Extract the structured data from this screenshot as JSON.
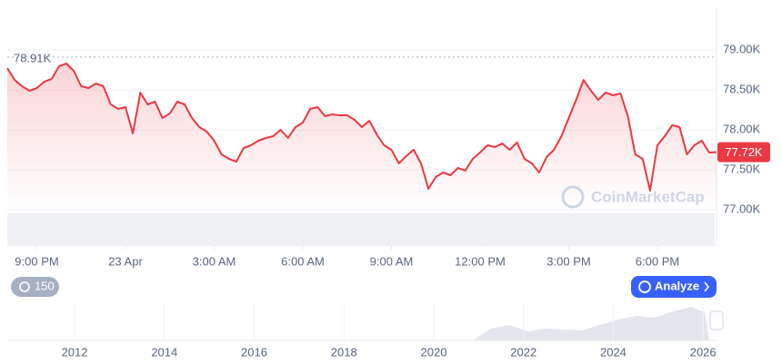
{
  "chart_data": {
    "type": "line",
    "color": "#ea3943",
    "values": [
      78773,
      78625,
      78545,
      78489,
      78523,
      78602,
      78636,
      78795,
      78830,
      78739,
      78545,
      78523,
      78580,
      78545,
      78318,
      78261,
      78284,
      77955,
      78466,
      78318,
      78352,
      78148,
      78205,
      78352,
      78318,
      78148,
      78034,
      77977,
      77864,
      77693,
      77636,
      77602,
      77773,
      77807,
      77864,
      77898,
      77920,
      78000,
      77898,
      78034,
      78091,
      78261,
      78284,
      78170,
      78193,
      78182,
      78182,
      78125,
      78034,
      78114,
      77943,
      77807,
      77750,
      77580,
      77670,
      77750,
      77580,
      77261,
      77409,
      77466,
      77432,
      77523,
      77489,
      77636,
      77716,
      77807,
      77784,
      77830,
      77750,
      77841,
      77636,
      77580,
      77466,
      77659,
      77750,
      77920,
      78148,
      78375,
      78625,
      78489,
      78375,
      78466,
      78432,
      78455,
      78170,
      77693,
      77636,
      77239,
      77807,
      77920,
      78057,
      78034,
      77693,
      77807,
      77864,
      77716,
      77720
    ],
    "xlim": [
      0,
      96
    ],
    "xticks": [
      {
        "value": 4,
        "label": "9:00 PM"
      },
      {
        "value": 16,
        "label": "23 Apr"
      },
      {
        "value": 28,
        "label": "3:00 AM"
      },
      {
        "value": 40,
        "label": "6:00 AM"
      },
      {
        "value": 52,
        "label": "9:00 AM"
      },
      {
        "value": 64,
        "label": "12:00 PM"
      },
      {
        "value": 76,
        "label": "3:00 PM"
      },
      {
        "value": 88,
        "label": "6:00 PM"
      }
    ],
    "ylim": [
      77000,
      79500
    ],
    "yticks": [
      {
        "value": 77000,
        "label": "77.00K"
      },
      {
        "value": 77500,
        "label": "77.50K"
      },
      {
        "value": 78000,
        "label": "78.00K"
      },
      {
        "value": 78500,
        "label": "78.50K"
      },
      {
        "value": 79000,
        "label": "79.00K"
      }
    ],
    "grid": true,
    "reference_line": {
      "value": 78910,
      "label": "78.91K"
    },
    "current_price": {
      "value": 77720,
      "label": "77.72K",
      "color": "#ea3943"
    },
    "watermark": "CoinMarketCap",
    "controls": {
      "history": "150",
      "analyze": "Analyze"
    },
    "navigator": {
      "xlim": [
        2010.5,
        2026.3
      ],
      "xticks": [
        2012,
        2014,
        2016,
        2018,
        2020,
        2022,
        2024,
        2026
      ]
    }
  }
}
